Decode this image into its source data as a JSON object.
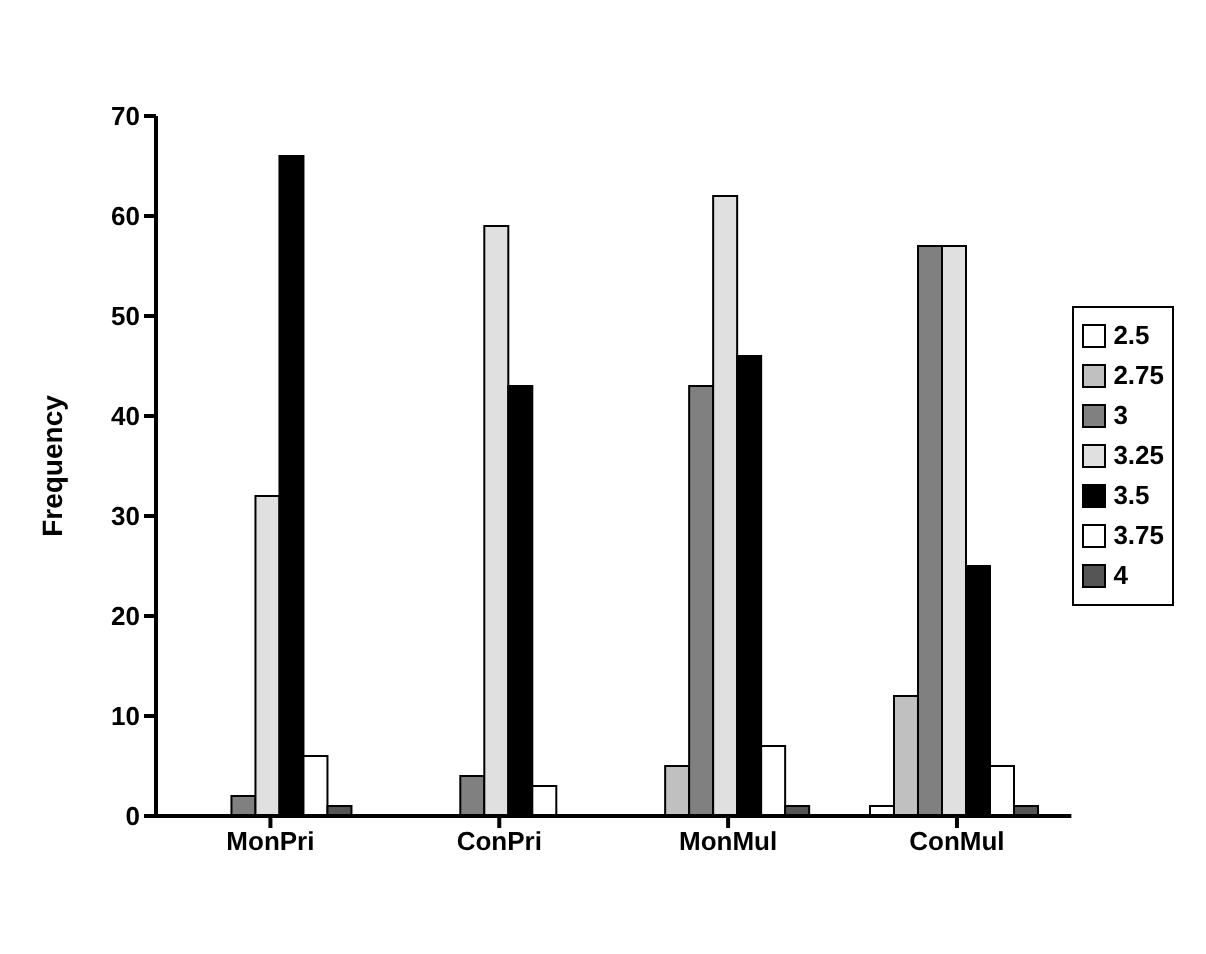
{
  "chart_data": {
    "type": "bar",
    "ylabel": "Frequency",
    "categories": [
      "MonPri",
      "ConPri",
      "MonMul",
      "ConMul"
    ],
    "ylim": [
      0,
      70
    ],
    "yticks": [
      0,
      10,
      20,
      30,
      40,
      50,
      60,
      70
    ],
    "grid": false,
    "legend": "right",
    "series": [
      {
        "name": "2.5",
        "color": "#ffffff",
        "values": [
          0,
          0,
          0,
          1
        ]
      },
      {
        "name": "2.75",
        "color": "#c0c0c0",
        "values": [
          0,
          0,
          5,
          12
        ]
      },
      {
        "name": "3",
        "color": "#808080",
        "values": [
          2,
          4,
          43,
          57
        ]
      },
      {
        "name": "3.25",
        "color": "#e0e0e0",
        "values": [
          32,
          59,
          62,
          57
        ]
      },
      {
        "name": "3.5",
        "color": "#000000",
        "values": [
          66,
          43,
          46,
          25
        ]
      },
      {
        "name": "3.75",
        "color": "#ffffff",
        "values": [
          6,
          3,
          7,
          5
        ]
      },
      {
        "name": "4",
        "color": "#555555",
        "values": [
          1,
          0,
          1,
          1
        ]
      }
    ]
  }
}
